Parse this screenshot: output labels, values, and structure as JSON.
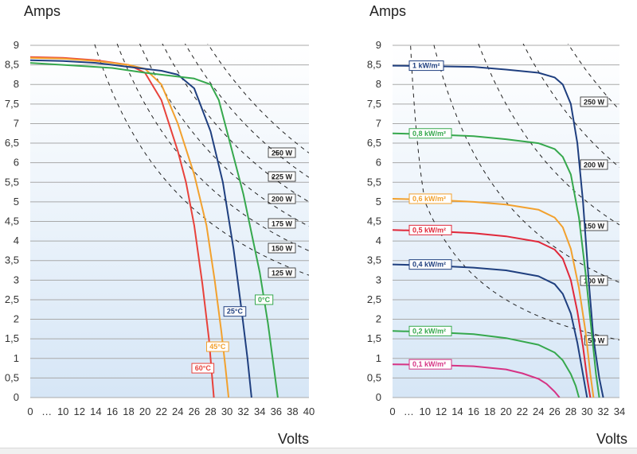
{
  "chart_data": [
    {
      "type": "line",
      "ylabel": "Amps",
      "xlabel": "Volts",
      "ylim": [
        0,
        9
      ],
      "xlim": [
        0,
        40
      ],
      "x_ticks": [
        "0",
        "…",
        "10",
        "12",
        "14",
        "16",
        "18",
        "20",
        "22",
        "24",
        "26",
        "28",
        "30",
        "32",
        "34",
        "36",
        "38",
        "40"
      ],
      "y_ticks": [
        "0",
        "0,5",
        "1",
        "1,5",
        "2",
        "2,5",
        "3",
        "3,5",
        "4",
        "4,5",
        "5",
        "5,5",
        "6",
        "6,5",
        "7",
        "7,5",
        "8",
        "8,5",
        "9"
      ],
      "grid": true,
      "series": [
        {
          "name": "60°C",
          "color": "#e8423b",
          "label_at": [
            28.4,
            0.75
          ],
          "points": [
            [
              0,
              8.7
            ],
            [
              10,
              8.68
            ],
            [
              14,
              8.62
            ],
            [
              18,
              8.5
            ],
            [
              20,
              8.3
            ],
            [
              22,
              7.6
            ],
            [
              24,
              6.3
            ],
            [
              25,
              5.5
            ],
            [
              26,
              4.4
            ],
            [
              27,
              2.9
            ],
            [
              27.8,
              1.5
            ],
            [
              28.2,
              0.5
            ],
            [
              28.4,
              0
            ]
          ]
        },
        {
          "name": "45°C",
          "color": "#f2a12e",
          "label_at": [
            30.2,
            1.3
          ],
          "points": [
            [
              0,
              8.68
            ],
            [
              10,
              8.66
            ],
            [
              14,
              8.6
            ],
            [
              18,
              8.5
            ],
            [
              20,
              8.4
            ],
            [
              22,
              8.0
            ],
            [
              24,
              7.0
            ],
            [
              26,
              5.7
            ],
            [
              27.5,
              4.4
            ],
            [
              28.5,
              3.0
            ],
            [
              29.3,
              1.7
            ],
            [
              29.8,
              0.8
            ],
            [
              30.2,
              0
            ]
          ]
        },
        {
          "name": "25°C",
          "color": "#1f3f7f",
          "label_at": [
            32.3,
            2.2
          ],
          "points": [
            [
              0,
              8.62
            ],
            [
              10,
              8.6
            ],
            [
              14,
              8.55
            ],
            [
              18,
              8.45
            ],
            [
              22,
              8.35
            ],
            [
              24,
              8.25
            ],
            [
              26,
              7.9
            ],
            [
              28,
              6.8
            ],
            [
              29.5,
              5.5
            ],
            [
              30.8,
              3.8
            ],
            [
              31.8,
              2.2
            ],
            [
              32.5,
              1.0
            ],
            [
              33,
              0
            ]
          ]
        },
        {
          "name": "0°C",
          "color": "#36a84d",
          "label_at": [
            35.6,
            2.5
          ],
          "points": [
            [
              0,
              8.55
            ],
            [
              10,
              8.5
            ],
            [
              16,
              8.42
            ],
            [
              20,
              8.3
            ],
            [
              26,
              8.15
            ],
            [
              28,
              8.0
            ],
            [
              29,
              7.6
            ],
            [
              30,
              6.8
            ],
            [
              31,
              6.0
            ],
            [
              32,
              5.2
            ],
            [
              33,
              4.2
            ],
            [
              34,
              3.2
            ],
            [
              35,
              1.9
            ],
            [
              35.7,
              0.8
            ],
            [
              36.2,
              0
            ]
          ]
        }
      ],
      "power_curves": [
        {
          "label": "250 W",
          "watts": 250
        },
        {
          "label": "225 W",
          "watts": 225
        },
        {
          "label": "200 W",
          "watts": 200
        },
        {
          "label": "175 W",
          "watts": 175
        },
        {
          "label": "150 W",
          "watts": 150
        },
        {
          "label": "125 W",
          "watts": 125
        }
      ]
    },
    {
      "type": "line",
      "ylabel": "Amps",
      "xlabel": "Volts",
      "ylim": [
        0,
        9
      ],
      "xlim": [
        0,
        34
      ],
      "x_ticks": [
        "0",
        "…",
        "10",
        "12",
        "14",
        "16",
        "18",
        "20",
        "22",
        "24",
        "26",
        "28",
        "30",
        "32",
        "34"
      ],
      "y_ticks": [
        "0",
        "0,5",
        "1",
        "1,5",
        "2",
        "2,5",
        "3",
        "3,5",
        "4",
        "4,5",
        "5",
        "5,5",
        "6",
        "6,5",
        "7",
        "7,5",
        "8",
        "8,5",
        "9"
      ],
      "grid": true,
      "series": [
        {
          "name": "1 kW/m²",
          "color": "#1f3f7f",
          "points": [
            [
              0,
              8.48
            ],
            [
              10,
              8.47
            ],
            [
              16,
              8.45
            ],
            [
              20,
              8.38
            ],
            [
              24,
              8.3
            ],
            [
              26,
              8.18
            ],
            [
              27,
              8.0
            ],
            [
              28,
              7.5
            ],
            [
              28.8,
              6.5
            ],
            [
              29.5,
              5.0
            ],
            [
              30.2,
              3.0
            ],
            [
              30.8,
              1.5
            ],
            [
              31.5,
              0.5
            ],
            [
              32,
              0
            ]
          ]
        },
        {
          "name": "0,8 kW/m²",
          "color": "#36a84d",
          "points": [
            [
              0,
              6.75
            ],
            [
              10,
              6.73
            ],
            [
              16,
              6.68
            ],
            [
              20,
              6.6
            ],
            [
              24,
              6.5
            ],
            [
              26,
              6.35
            ],
            [
              27,
              6.15
            ],
            [
              28,
              5.7
            ],
            [
              29,
              4.6
            ],
            [
              29.8,
              3.2
            ],
            [
              30.5,
              1.8
            ],
            [
              31.1,
              0.6
            ],
            [
              31.5,
              0
            ]
          ]
        },
        {
          "name": "0,6 kW/m²",
          "color": "#f2a12e",
          "points": [
            [
              0,
              5.08
            ],
            [
              10,
              5.06
            ],
            [
              16,
              5.0
            ],
            [
              20,
              4.93
            ],
            [
              24,
              4.8
            ],
            [
              26,
              4.6
            ],
            [
              27,
              4.35
            ],
            [
              28,
              3.8
            ],
            [
              29,
              2.8
            ],
            [
              29.8,
              1.7
            ],
            [
              30.4,
              0.6
            ],
            [
              30.8,
              0
            ]
          ]
        },
        {
          "name": "0,5 kW/m²",
          "color": "#e0283a",
          "points": [
            [
              0,
              4.28
            ],
            [
              10,
              4.26
            ],
            [
              16,
              4.2
            ],
            [
              20,
              4.12
            ],
            [
              24,
              3.98
            ],
            [
              26,
              3.78
            ],
            [
              27,
              3.55
            ],
            [
              28,
              3.0
            ],
            [
              28.8,
              2.2
            ],
            [
              29.5,
              1.3
            ],
            [
              30,
              0.5
            ],
            [
              30.4,
              0
            ]
          ]
        },
        {
          "name": "0,4 kW/m²",
          "color": "#1f3f7f",
          "points": [
            [
              0,
              3.4
            ],
            [
              10,
              3.38
            ],
            [
              16,
              3.32
            ],
            [
              20,
              3.25
            ],
            [
              24,
              3.1
            ],
            [
              26,
              2.9
            ],
            [
              27,
              2.65
            ],
            [
              28,
              2.15
            ],
            [
              28.8,
              1.4
            ],
            [
              29.4,
              0.7
            ],
            [
              30,
              0
            ]
          ]
        },
        {
          "name": "0,2 kW/m²",
          "color": "#36a84d",
          "points": [
            [
              0,
              1.7
            ],
            [
              10,
              1.68
            ],
            [
              16,
              1.62
            ],
            [
              20,
              1.52
            ],
            [
              24,
              1.35
            ],
            [
              26,
              1.15
            ],
            [
              27,
              0.95
            ],
            [
              28,
              0.6
            ],
            [
              28.6,
              0.3
            ],
            [
              29,
              0
            ]
          ]
        },
        {
          "name": "0,1 kW/m²",
          "color": "#d63384",
          "points": [
            [
              0,
              0.85
            ],
            [
              10,
              0.84
            ],
            [
              16,
              0.8
            ],
            [
              20,
              0.72
            ],
            [
              22,
              0.62
            ],
            [
              24,
              0.48
            ],
            [
              25,
              0.35
            ],
            [
              26,
              0.15
            ],
            [
              26.6,
              0
            ]
          ]
        }
      ],
      "power_curves": [
        {
          "label": "250 W",
          "watts": 250
        },
        {
          "label": "200 W",
          "watts": 200
        },
        {
          "label": "150 W",
          "watts": 150
        },
        {
          "label": "100 W",
          "watts": 100
        },
        {
          "label": "50 W",
          "watts": 50
        }
      ]
    }
  ]
}
